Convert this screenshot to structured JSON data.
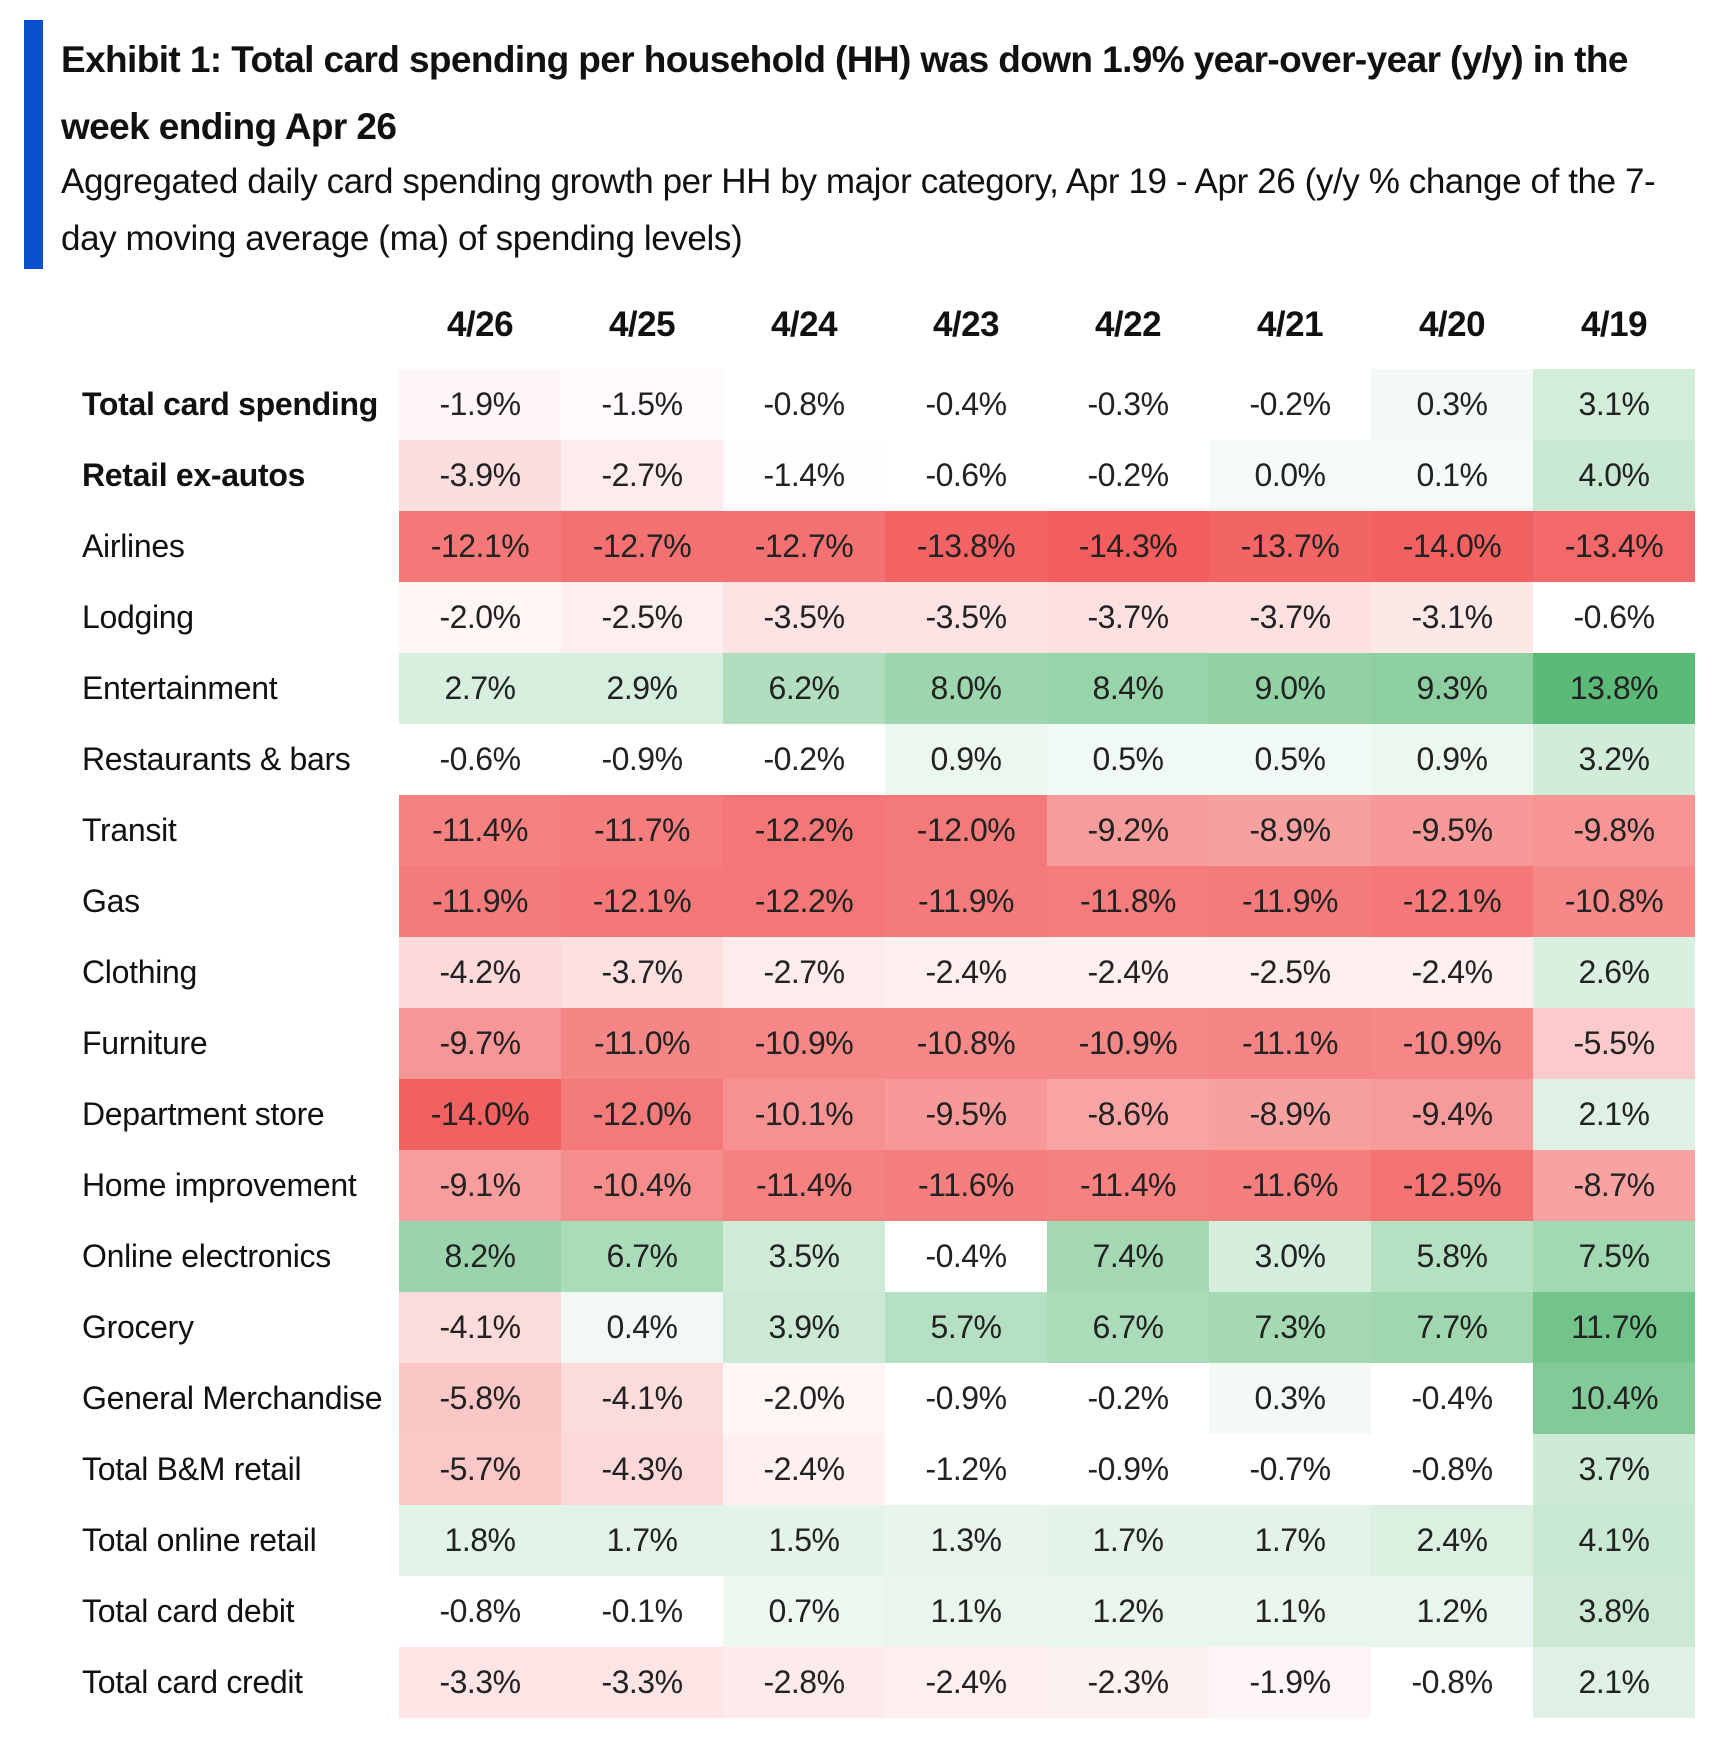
{
  "header": {
    "title": "Exhibit 1: Total card spending per household (HH) was down 1.9% year-over-year (y/y) in the week ending Apr 26",
    "subtitle": "Aggregated daily card spending growth per HH by major category, Apr 19 - Apr 26 (y/y % change of the 7-day moving average (ma) of spending levels)"
  },
  "colors": {
    "accent": "#0a4fcf",
    "negative": "#f25c5c",
    "neutral": "#ffffff",
    "positive": "#5cba78"
  },
  "chart_data": {
    "type": "heatmap",
    "title": "Exhibit 1: Total card spending per household (HH) was down 1.9% year-over-year (y/y) in the week ending Apr 26",
    "subtitle": "Aggregated daily card spending growth per HH by major category, Apr 19 - Apr 26 (y/y % change of the 7-day moving average (ma) of spending levels)",
    "columns": [
      "4/26",
      "4/25",
      "4/24",
      "4/23",
      "4/22",
      "4/21",
      "4/20",
      "4/19"
    ],
    "unit": "%",
    "rows": [
      {
        "label": "Total card spending",
        "bold": true,
        "values": [
          -1.9,
          -1.5,
          -0.8,
          -0.4,
          -0.3,
          -0.2,
          0.3,
          3.1
        ]
      },
      {
        "label": "Retail ex-autos",
        "bold": true,
        "values": [
          -3.9,
          -2.7,
          -1.4,
          -0.6,
          -0.2,
          0.0,
          0.1,
          4.0
        ]
      },
      {
        "label": "Airlines",
        "bold": false,
        "values": [
          -12.1,
          -12.7,
          -12.7,
          -13.8,
          -14.3,
          -13.7,
          -14.0,
          -13.4
        ]
      },
      {
        "label": "Lodging",
        "bold": false,
        "values": [
          -2.0,
          -2.5,
          -3.5,
          -3.5,
          -3.7,
          -3.7,
          -3.1,
          -0.6
        ]
      },
      {
        "label": "Entertainment",
        "bold": false,
        "values": [
          2.7,
          2.9,
          6.2,
          8.0,
          8.4,
          9.0,
          9.3,
          13.8
        ]
      },
      {
        "label": "Restaurants & bars",
        "bold": false,
        "values": [
          -0.6,
          -0.9,
          -0.2,
          0.9,
          0.5,
          0.5,
          0.9,
          3.2
        ]
      },
      {
        "label": "Transit",
        "bold": false,
        "values": [
          -11.4,
          -11.7,
          -12.2,
          -12.0,
          -9.2,
          -8.9,
          -9.5,
          -9.8
        ]
      },
      {
        "label": "Gas",
        "bold": false,
        "values": [
          -11.9,
          -12.1,
          -12.2,
          -11.9,
          -11.8,
          -11.9,
          -12.1,
          -10.8
        ]
      },
      {
        "label": "Clothing",
        "bold": false,
        "values": [
          -4.2,
          -3.7,
          -2.7,
          -2.4,
          -2.4,
          -2.5,
          -2.4,
          2.6
        ]
      },
      {
        "label": "Furniture",
        "bold": false,
        "values": [
          -9.7,
          -11.0,
          -10.9,
          -10.8,
          -10.9,
          -11.1,
          -10.9,
          -5.5
        ]
      },
      {
        "label": "Department store",
        "bold": false,
        "values": [
          -14.0,
          -12.0,
          -10.1,
          -9.5,
          -8.6,
          -8.9,
          -9.4,
          2.1
        ]
      },
      {
        "label": "Home improvement",
        "bold": false,
        "values": [
          -9.1,
          -10.4,
          -11.4,
          -11.6,
          -11.4,
          -11.6,
          -12.5,
          -8.7
        ]
      },
      {
        "label": "Online electronics",
        "bold": false,
        "values": [
          8.2,
          6.7,
          3.5,
          -0.4,
          7.4,
          3.0,
          5.8,
          7.5
        ]
      },
      {
        "label": "Grocery",
        "bold": false,
        "values": [
          -4.1,
          0.4,
          3.9,
          5.7,
          6.7,
          7.3,
          7.7,
          11.7
        ]
      },
      {
        "label": "General Merchandise",
        "bold": false,
        "values": [
          -5.8,
          -4.1,
          -2.0,
          -0.9,
          -0.2,
          0.3,
          -0.4,
          10.4
        ]
      },
      {
        "label": "Total B&M retail",
        "bold": false,
        "values": [
          -5.7,
          -4.3,
          -2.4,
          -1.2,
          -0.9,
          -0.7,
          -0.8,
          3.7
        ]
      },
      {
        "label": "Total online retail",
        "bold": false,
        "values": [
          1.8,
          1.7,
          1.5,
          1.3,
          1.7,
          1.7,
          2.4,
          4.1
        ]
      },
      {
        "label": "Total card debit",
        "bold": false,
        "values": [
          -0.8,
          -0.1,
          0.7,
          1.1,
          1.2,
          1.1,
          1.2,
          3.8
        ]
      },
      {
        "label": "Total card credit",
        "bold": false,
        "values": [
          -3.3,
          -3.3,
          -2.8,
          -2.4,
          -2.3,
          -1.9,
          -0.8,
          2.1
        ]
      }
    ]
  }
}
